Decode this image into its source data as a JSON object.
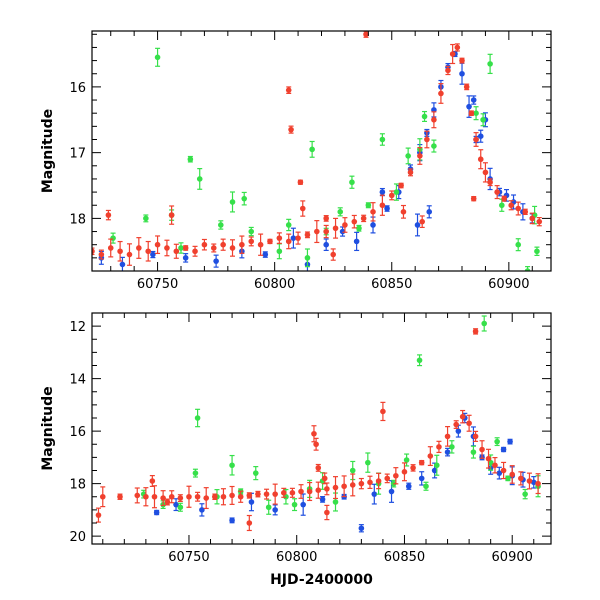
{
  "chart_data": [
    {
      "type": "scatter",
      "panel": "top",
      "xlabel": "",
      "ylabel": "Magnitude",
      "xlim": [
        60722,
        60918
      ],
      "ylim": [
        18.8,
        15.15
      ],
      "y_inverted": true,
      "xticks": [
        60750,
        60800,
        60850,
        60900
      ],
      "yticks": [
        16,
        17,
        18
      ],
      "grid": false,
      "error_bars": true,
      "series": [
        {
          "color": "#1f4fe0",
          "values": [
            [
              60726,
              18.6
            ],
            [
              60735,
              18.7
            ],
            [
              60748,
              18.55
            ],
            [
              60762,
              18.6
            ],
            [
              60775,
              18.65
            ],
            [
              60786,
              18.5
            ],
            [
              60796,
              18.55
            ],
            [
              60808,
              18.3
            ],
            [
              60814,
              18.7
            ],
            [
              60822,
              18.4
            ],
            [
              60829,
              18.2
            ],
            [
              60835,
              18.35
            ],
            [
              60842,
              18.1
            ],
            [
              60848,
              17.85
            ],
            [
              60853,
              17.6
            ],
            [
              60858,
              17.25
            ],
            [
              60862,
              17.0
            ],
            [
              60865,
              16.7
            ],
            [
              60868,
              16.35
            ],
            [
              60871,
              16.0
            ],
            [
              60874,
              15.7
            ],
            [
              60877,
              15.5
            ],
            [
              60880,
              15.8
            ],
            [
              60883,
              16.3
            ],
            [
              60886,
              16.8
            ],
            [
              60888,
              16.75
            ],
            [
              60892,
              17.4
            ],
            [
              60896,
              17.6
            ],
            [
              60899,
              17.65
            ],
            [
              60902,
              17.75
            ],
            [
              60906,
              17.9
            ],
            [
              60910,
              18.0
            ],
            [
              60846,
              17.6
            ],
            [
              60861,
              18.1
            ],
            [
              60866,
              17.9
            ],
            [
              60885,
              16.2
            ],
            [
              60890,
              16.5
            ]
          ]
        },
        {
          "color": "#36e04a",
          "values": [
            [
              60731,
              18.3
            ],
            [
              60745,
              18.0
            ],
            [
              60750,
              15.55
            ],
            [
              60756,
              17.95
            ],
            [
              60760,
              18.45
            ],
            [
              60764,
              17.1
            ],
            [
              60768,
              17.4
            ],
            [
              60777,
              18.1
            ],
            [
              60782,
              17.75
            ],
            [
              60787,
              17.7
            ],
            [
              60790,
              18.2
            ],
            [
              60802,
              18.5
            ],
            [
              60806,
              18.1
            ],
            [
              60814,
              18.6
            ],
            [
              60816,
              16.95
            ],
            [
              60822,
              18.2
            ],
            [
              60828,
              17.9
            ],
            [
              60833,
              17.45
            ],
            [
              60836,
              18.15
            ],
            [
              60840,
              17.8
            ],
            [
              60846,
              16.8
            ],
            [
              60852,
              17.6
            ],
            [
              60857,
              17.05
            ],
            [
              60862,
              16.95
            ],
            [
              60864,
              16.45
            ],
            [
              60868,
              16.9
            ],
            [
              60886,
              16.4
            ],
            [
              60889,
              16.5
            ],
            [
              60892,
              15.65
            ],
            [
              60897,
              17.8
            ],
            [
              60904,
              18.4
            ],
            [
              60908,
              18.8
            ],
            [
              60912,
              18.5
            ],
            [
              60911,
              17.95
            ]
          ]
        },
        {
          "color": "#f0402e",
          "values": [
            [
              60722,
              18.5
            ],
            [
              60726,
              18.55
            ],
            [
              60730,
              18.45
            ],
            [
              60734,
              18.5
            ],
            [
              60738,
              18.55
            ],
            [
              60742,
              18.45
            ],
            [
              60746,
              18.5
            ],
            [
              60750,
              18.4
            ],
            [
              60754,
              18.45
            ],
            [
              60758,
              18.5
            ],
            [
              60762,
              18.45
            ],
            [
              60766,
              18.5
            ],
            [
              60770,
              18.4
            ],
            [
              60774,
              18.45
            ],
            [
              60778,
              18.4
            ],
            [
              60782,
              18.45
            ],
            [
              60786,
              18.4
            ],
            [
              60790,
              18.35
            ],
            [
              60794,
              18.4
            ],
            [
              60798,
              18.35
            ],
            [
              60802,
              18.3
            ],
            [
              60806,
              18.35
            ],
            [
              60810,
              18.3
            ],
            [
              60814,
              18.25
            ],
            [
              60818,
              18.2
            ],
            [
              60822,
              18.2
            ],
            [
              60826,
              18.15
            ],
            [
              60830,
              18.1
            ],
            [
              60834,
              18.05
            ],
            [
              60838,
              18.0
            ],
            [
              60842,
              17.9
            ],
            [
              60846,
              17.8
            ],
            [
              60850,
              17.65
            ],
            [
              60854,
              17.5
            ],
            [
              60858,
              17.3
            ],
            [
              60862,
              17.05
            ],
            [
              60865,
              16.8
            ],
            [
              60868,
              16.5
            ],
            [
              60871,
              16.1
            ],
            [
              60874,
              15.75
            ],
            [
              60876,
              15.5
            ],
            [
              60878,
              15.4
            ],
            [
              60880,
              15.6
            ],
            [
              60882,
              16.0
            ],
            [
              60884,
              16.4
            ],
            [
              60886,
              16.8
            ],
            [
              60888,
              17.1
            ],
            [
              60890,
              17.3
            ],
            [
              60892,
              17.45
            ],
            [
              60895,
              17.6
            ],
            [
              60898,
              17.7
            ],
            [
              60901,
              17.8
            ],
            [
              60904,
              17.85
            ],
            [
              60907,
              17.9
            ],
            [
              60910,
              18.0
            ],
            [
              60913,
              18.05
            ],
            [
              60729,
              17.95
            ],
            [
              60756,
              17.95
            ],
            [
              60806,
              16.05
            ],
            [
              60807,
              16.65
            ],
            [
              60811,
              17.45
            ],
            [
              60812,
              17.85
            ],
            [
              60822,
              18.0
            ],
            [
              60825,
              18.55
            ],
            [
              60839,
              15.2
            ],
            [
              60855,
              17.9
            ],
            [
              60863,
              18.05
            ],
            [
              60885,
              17.7
            ]
          ]
        }
      ]
    },
    {
      "type": "scatter",
      "panel": "bottom",
      "xlabel": "HJD-2400000",
      "ylabel": "Magnitude",
      "xlim": [
        60705,
        60918
      ],
      "ylim": [
        20.3,
        11.5
      ],
      "y_inverted": true,
      "xticks": [
        60750,
        60800,
        60850,
        60900
      ],
      "yticks": [
        12,
        14,
        16,
        18,
        20
      ],
      "grid": false,
      "error_bars": true,
      "series": [
        {
          "color": "#1f4fe0",
          "values": [
            [
              60735,
              19.1
            ],
            [
              60744,
              18.8
            ],
            [
              60756,
              19.0
            ],
            [
              60770,
              19.4
            ],
            [
              60779,
              18.7
            ],
            [
              60790,
              19.0
            ],
            [
              60803,
              18.8
            ],
            [
              60812,
              18.6
            ],
            [
              60822,
              18.5
            ],
            [
              60830,
              19.7
            ],
            [
              60836,
              18.4
            ],
            [
              60844,
              18.3
            ],
            [
              60852,
              18.1
            ],
            [
              60858,
              17.8
            ],
            [
              60864,
              17.5
            ],
            [
              60870,
              16.8
            ],
            [
              60875,
              16.0
            ],
            [
              60878,
              15.5
            ],
            [
              60882,
              16.2
            ],
            [
              60886,
              17.0
            ],
            [
              60890,
              17.4
            ],
            [
              60894,
              17.6
            ],
            [
              60900,
              17.7
            ],
            [
              60905,
              17.85
            ],
            [
              60910,
              17.95
            ],
            [
              60896,
              16.7
            ],
            [
              60899,
              16.4
            ]
          ]
        },
        {
          "color": "#36e04a",
          "values": [
            [
              60729,
              18.4
            ],
            [
              60738,
              18.8
            ],
            [
              60746,
              18.9
            ],
            [
              60753,
              17.6
            ],
            [
              60754,
              15.5
            ],
            [
              60763,
              18.5
            ],
            [
              60770,
              17.3
            ],
            [
              60774,
              18.3
            ],
            [
              60781,
              17.6
            ],
            [
              60787,
              18.9
            ],
            [
              60795,
              18.5
            ],
            [
              60799,
              18.8
            ],
            [
              60806,
              18.2
            ],
            [
              60812,
              17.9
            ],
            [
              60818,
              18.7
            ],
            [
              60826,
              17.5
            ],
            [
              60833,
              17.2
            ],
            [
              60838,
              18.0
            ],
            [
              60845,
              18.0
            ],
            [
              60851,
              17.1
            ],
            [
              60857,
              13.3
            ],
            [
              60860,
              18.1
            ],
            [
              60865,
              17.3
            ],
            [
              60872,
              16.6
            ],
            [
              60882,
              16.8
            ],
            [
              60887,
              11.9
            ],
            [
              60890,
              17.2
            ],
            [
              60893,
              16.4
            ],
            [
              60898,
              17.8
            ],
            [
              60906,
              18.4
            ],
            [
              60912,
              18.1
            ]
          ]
        },
        {
          "color": "#f0402e",
          "values": [
            [
              60708,
              19.2
            ],
            [
              60710,
              18.5
            ],
            [
              60718,
              18.5
            ],
            [
              60726,
              18.45
            ],
            [
              60730,
              18.5
            ],
            [
              60734,
              18.5
            ],
            [
              60738,
              18.55
            ],
            [
              60742,
              18.5
            ],
            [
              60746,
              18.55
            ],
            [
              60750,
              18.5
            ],
            [
              60754,
              18.5
            ],
            [
              60758,
              18.55
            ],
            [
              60762,
              18.5
            ],
            [
              60766,
              18.5
            ],
            [
              60770,
              18.45
            ],
            [
              60774,
              18.5
            ],
            [
              60778,
              18.45
            ],
            [
              60782,
              18.4
            ],
            [
              60786,
              18.4
            ],
            [
              60790,
              18.4
            ],
            [
              60794,
              18.35
            ],
            [
              60798,
              18.35
            ],
            [
              60802,
              18.3
            ],
            [
              60806,
              18.3
            ],
            [
              60810,
              18.25
            ],
            [
              60814,
              18.2
            ],
            [
              60818,
              18.15
            ],
            [
              60822,
              18.1
            ],
            [
              60826,
              18.05
            ],
            [
              60830,
              18.0
            ],
            [
              60834,
              17.95
            ],
            [
              60838,
              17.9
            ],
            [
              60842,
              17.8
            ],
            [
              60846,
              17.7
            ],
            [
              60850,
              17.55
            ],
            [
              60854,
              17.4
            ],
            [
              60858,
              17.2
            ],
            [
              60862,
              16.95
            ],
            [
              60866,
              16.6
            ],
            [
              60870,
              16.2
            ],
            [
              60874,
              15.75
            ],
            [
              60877,
              15.45
            ],
            [
              60880,
              15.7
            ],
            [
              60883,
              16.2
            ],
            [
              60886,
              16.7
            ],
            [
              60889,
              17.05
            ],
            [
              60892,
              17.3
            ],
            [
              60896,
              17.5
            ],
            [
              60900,
              17.65
            ],
            [
              60904,
              17.8
            ],
            [
              60908,
              17.9
            ],
            [
              60912,
              18.0
            ],
            [
              60733,
              17.9
            ],
            [
              60740,
              18.7
            ],
            [
              60778,
              19.5
            ],
            [
              60808,
              16.1
            ],
            [
              60809,
              16.5
            ],
            [
              60813,
              17.8
            ],
            [
              60840,
              15.25
            ],
            [
              60883,
              12.2
            ],
            [
              60814,
              19.1
            ],
            [
              60810,
              17.4
            ]
          ]
        }
      ]
    }
  ]
}
